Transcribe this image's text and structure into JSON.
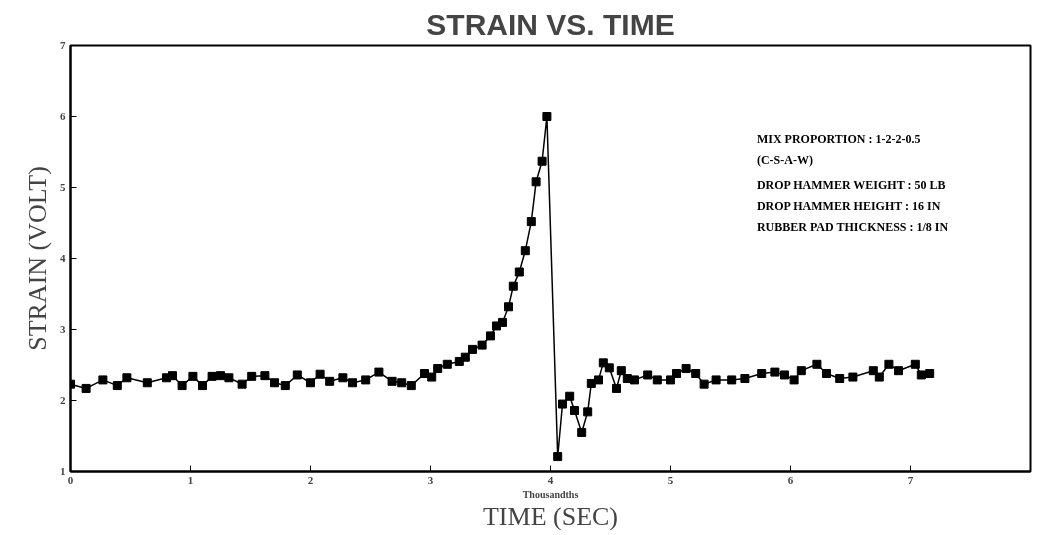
{
  "chart_data": {
    "type": "line",
    "title": "STRAIN VS. TIME",
    "xlabel": "TIME (SEC)",
    "ylabel": "STRAIN (VOLT)",
    "annotations": [
      "MIX PROPORTION :      1-2-2-0.5",
      "(C-S-A-W)",
      "DROP HAMMER WEIGHT : 50 LB",
      "DROP HAMMER HEIGHT : 16 IN",
      "RUBBER PAD THICKNESS : 1/8 IN",
      "Thousandths"
    ],
    "xlim": [
      0,
      8
    ],
    "xticks": [
      0,
      1,
      2,
      3,
      4,
      5,
      6,
      7
    ],
    "ylim": [
      1,
      7
    ],
    "yticks": [
      1,
      2,
      3,
      4,
      5,
      6,
      7
    ],
    "grid": false,
    "marker": "square",
    "line_style": "solid",
    "series": [
      {
        "color": "#000000",
        "x": [
          0.0,
          0.13,
          0.27,
          0.39,
          0.47,
          0.64,
          0.8,
          0.85,
          0.93,
          1.02,
          1.1,
          1.18,
          1.25,
          1.32,
          1.43,
          1.51,
          1.62,
          1.7,
          1.79,
          1.89,
          2.0,
          2.08,
          2.16,
          2.27,
          2.35,
          2.46,
          2.57,
          2.68,
          2.76,
          2.84,
          2.95,
          3.01,
          3.06,
          3.14,
          3.24,
          3.29,
          3.35,
          3.43,
          3.5,
          3.55,
          3.6,
          3.65,
          3.69,
          3.74,
          3.79,
          3.84,
          3.88,
          3.93,
          3.97,
          4.06,
          4.1,
          4.16,
          4.2,
          4.26,
          4.31,
          4.34,
          4.4,
          4.44,
          4.49,
          4.55,
          4.59,
          4.64,
          4.7,
          4.81,
          4.89,
          5.0,
          5.05,
          5.13,
          5.21,
          5.28,
          5.38,
          5.51,
          5.62,
          5.76,
          5.87,
          5.95,
          6.03,
          6.09,
          6.22,
          6.3,
          6.41,
          6.52,
          6.69,
          6.74,
          6.82,
          6.9,
          7.04,
          7.09,
          7.16
        ],
        "values": [
          2.23,
          2.17,
          2.29,
          2.21,
          2.32,
          2.25,
          2.32,
          2.35,
          2.21,
          2.34,
          2.21,
          2.34,
          2.35,
          2.32,
          2.23,
          2.34,
          2.35,
          2.25,
          2.21,
          2.36,
          2.25,
          2.37,
          2.27,
          2.32,
          2.25,
          2.29,
          2.4,
          2.27,
          2.25,
          2.21,
          2.38,
          2.33,
          2.45,
          2.51,
          2.55,
          2.61,
          2.72,
          2.78,
          2.91,
          3.05,
          3.1,
          3.32,
          3.61,
          3.81,
          4.11,
          4.52,
          5.08,
          5.37,
          6.0,
          1.21,
          1.95,
          2.06,
          1.86,
          1.55,
          1.84,
          2.24,
          2.29,
          2.53,
          2.46,
          2.17,
          2.42,
          2.31,
          2.29,
          2.36,
          2.29,
          2.29,
          2.38,
          2.45,
          2.38,
          2.23,
          2.29,
          2.29,
          2.31,
          2.38,
          2.4,
          2.36,
          2.29,
          2.42,
          2.51,
          2.38,
          2.31,
          2.33,
          2.42,
          2.33,
          2.51,
          2.42,
          2.51,
          2.36,
          2.38
        ]
      }
    ]
  }
}
